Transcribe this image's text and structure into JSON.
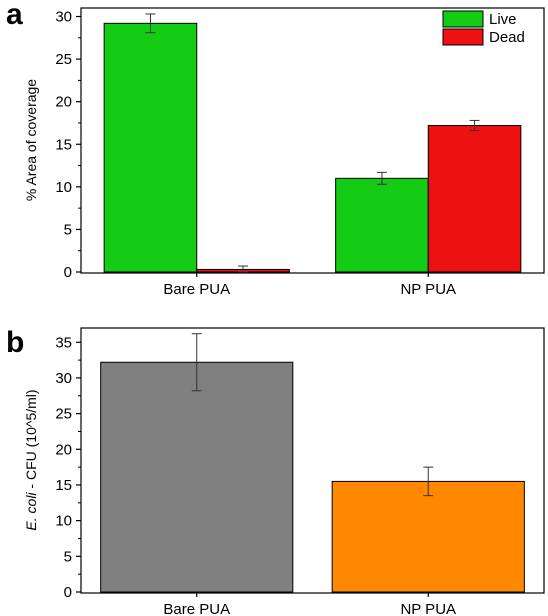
{
  "chart_data": [
    {
      "panel_label": "a",
      "type": "bar",
      "categories": [
        "Bare PUA",
        "NP PUA"
      ],
      "series": [
        {
          "name": "Live",
          "color": "#14cc14",
          "values": [
            29.2,
            11.0
          ],
          "errors": [
            1.1,
            0.7
          ]
        },
        {
          "name": "Dead",
          "color": "#ee1111",
          "values": [
            0.3,
            17.2
          ],
          "errors": [
            0.4,
            0.6
          ]
        }
      ],
      "ylabel": "% Area of coverage",
      "xlabel": "",
      "ylim": [
        0,
        31
      ],
      "yticks": [
        0,
        5,
        10,
        15,
        20,
        25,
        30
      ],
      "legend_position": "top-right",
      "grid": false
    },
    {
      "panel_label": "b",
      "type": "bar",
      "categories": [
        "Bare PUA",
        "NP PUA"
      ],
      "series": [
        {
          "values": [
            32.2,
            15.5
          ],
          "errors": [
            4.0,
            2.0
          ],
          "colors": [
            "#808080",
            "#ff8800"
          ]
        }
      ],
      "ylabel_italic": "E. coli",
      "ylabel_rest": " - CFU (10^5/ml)",
      "xlabel": "",
      "ylim": [
        0,
        37
      ],
      "yticks": [
        0,
        5,
        10,
        15,
        20,
        25,
        30,
        35
      ],
      "grid": false
    }
  ]
}
